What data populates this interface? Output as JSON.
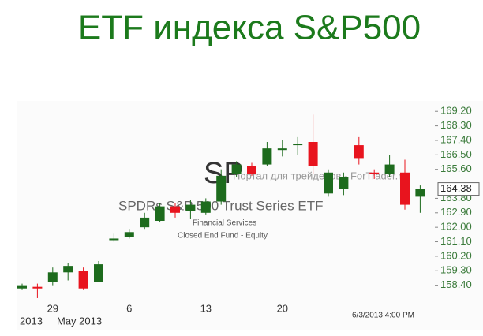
{
  "chart_data": {
    "type": "candlestick",
    "title": "ETF индекса S&P500",
    "categories": [
      null,
      null,
      "29",
      null,
      null,
      null,
      null,
      "6",
      null,
      null,
      null,
      null,
      "13",
      null,
      null,
      null,
      null,
      "20",
      null,
      null,
      null,
      null,
      null,
      null,
      null,
      null,
      null
    ],
    "x_sublabels": [
      "2013",
      "May 2013"
    ],
    "timestamp": "6/3/2013 4:00 PM",
    "watermark": {
      "symbol": "SP",
      "name": "SPDRs S&P 500 Trust Series ETF",
      "sector": "Financial Services",
      "fund_type": "Closed End Fund - Equity",
      "site": "Портал для трейдеров - ForTrader.ru"
    },
    "up_color": "#1d6b1d",
    "down_color": "#e8141e",
    "series": [
      {
        "open": [
          158.2,
          158.3,
          158.6,
          159.2,
          159.3,
          158.6,
          161.2,
          161.4,
          162.0,
          162.4,
          163.3,
          163.0,
          162.9,
          163.6,
          165.3,
          165.8,
          165.9,
          166.8,
          167.1,
          167.3,
          164.1,
          164.4,
          167.1,
          165.4,
          165.3,
          165.4,
          163.9
        ],
        "high": [
          158.5,
          158.5,
          159.5,
          159.8,
          159.5,
          159.9,
          161.6,
          161.9,
          162.9,
          163.5,
          163.5,
          163.7,
          163.8,
          165.6,
          166.1,
          166.0,
          167.3,
          167.4,
          167.6,
          169.0,
          165.6,
          165.4,
          167.6,
          165.6,
          166.5,
          166.2,
          164.6
        ],
        "low": [
          158.1,
          157.6,
          158.4,
          158.7,
          158.1,
          158.6,
          161.1,
          161.3,
          161.9,
          162.3,
          162.6,
          162.5,
          162.8,
          163.4,
          165.1,
          165.2,
          165.8,
          166.4,
          166.5,
          165.3,
          163.9,
          164.0,
          165.9,
          165.0,
          165.1,
          163.1,
          162.9
        ],
        "close": [
          158.4,
          158.2,
          159.2,
          159.6,
          158.2,
          159.7,
          161.3,
          161.7,
          162.6,
          163.3,
          162.9,
          163.4,
          163.6,
          165.2,
          165.9,
          165.3,
          166.9,
          166.9,
          167.2,
          165.8,
          165.4,
          165.1,
          166.3,
          165.3,
          165.9,
          163.4,
          164.38
        ]
      }
    ],
    "last_price": 164.38,
    "ylim": [
      157.5,
      169.75
    ],
    "yticks": [
      {
        "value": 169.2,
        "label": "169.20"
      },
      {
        "value": 168.3,
        "label": "168.30"
      },
      {
        "value": 167.4,
        "label": "167.40"
      },
      {
        "value": 166.5,
        "label": "166.50"
      },
      {
        "value": 165.6,
        "label": "165.60"
      },
      {
        "value": 163.8,
        "label": "163.80"
      },
      {
        "value": 162.9,
        "label": "162.90"
      },
      {
        "value": 162,
        "label": "162.00"
      },
      {
        "value": 161.1,
        "label": "161.10"
      },
      {
        "value": 160.2,
        "label": "160.20"
      },
      {
        "value": 159.3,
        "label": "159.30"
      },
      {
        "value": 158.4,
        "label": "158.40"
      }
    ]
  }
}
